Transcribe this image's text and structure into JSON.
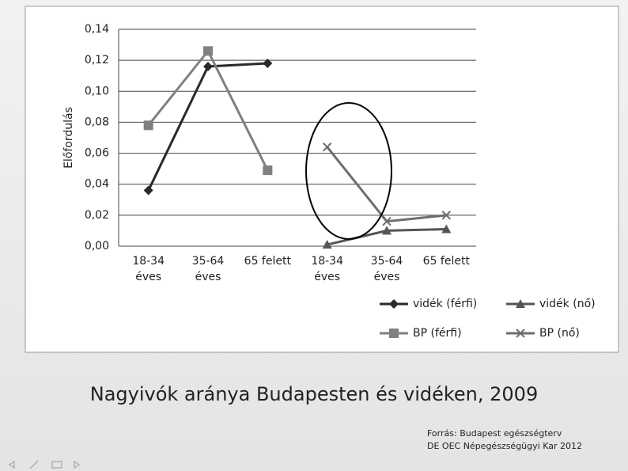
{
  "chart_data": {
    "type": "line",
    "y_label": "Előfordulás",
    "categories": [
      "18-34 éves",
      "35-64 éves",
      "65 felett",
      "18-34 éves",
      "35-64 éves",
      "65 felett"
    ],
    "series": [
      {
        "name": "vidék (férfi)",
        "color": "#2a2a2a",
        "marker": "diamond",
        "values": [
          0.036,
          0.116,
          0.118,
          null,
          null,
          null
        ]
      },
      {
        "name": "vidék (nő)",
        "color": "#555555",
        "marker": "triangle",
        "values": [
          null,
          null,
          null,
          0.001,
          0.01,
          0.011
        ]
      },
      {
        "name": "BP (férfi)",
        "color": "#808080",
        "marker": "square",
        "values": [
          0.078,
          0.126,
          0.049,
          null,
          null,
          null
        ]
      },
      {
        "name": "BP (nő)",
        "color": "#6e6e6e",
        "marker": "x",
        "values": [
          null,
          null,
          null,
          0.064,
          0.016,
          0.02
        ]
      }
    ],
    "ylim": [
      0,
      0.14
    ],
    "yticks": [
      {
        "value": 0,
        "label": "0,00"
      },
      {
        "value": 0.02,
        "label": "0,02"
      },
      {
        "value": 0.04,
        "label": "0,04"
      },
      {
        "value": 0.06,
        "label": "0,06"
      },
      {
        "value": 0.08,
        "label": "0,08"
      },
      {
        "value": 0.1,
        "label": "0,10"
      },
      {
        "value": 0.12,
        "label": "0,12"
      },
      {
        "value": 0.14,
        "label": "0,14"
      }
    ],
    "grid": true,
    "legend": "bottom-right"
  },
  "slide": {
    "title": "Nagyivók aránya Budapesten és vidéken, 2009",
    "source": [
      "Forrás: Budapest egészségterv",
      "DE OEC Népegészségügyi Kar 2012"
    ]
  }
}
